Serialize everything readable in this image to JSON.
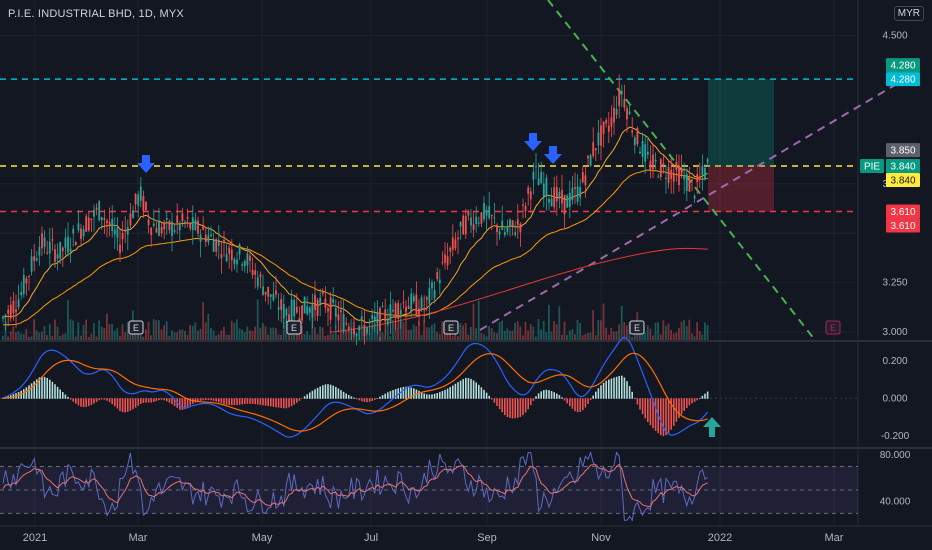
{
  "header": {
    "title": "P.I.E. INDUSTRIAL BHD, 1D, MYX",
    "currency": "MYR"
  },
  "colors": {
    "bg": "#131722",
    "grid": "#1e222d",
    "axis_text": "#b2b5be",
    "cyan": "#00bcd4",
    "yellow": "#ffeb3b",
    "red": "#f23645",
    "green_dash": "#4caf50",
    "purple_dash": "#9c6aa8",
    "ma_fast": "#f5a623",
    "ma_mid": "#ff9800",
    "ma_slow": "#e53935",
    "macd": "#2962ff",
    "signal": "#ff6d00",
    "rsi": "#7e57c2",
    "candle_up": "#26a69a",
    "candle_down": "#ef5350",
    "arrow": "#2962ff"
  },
  "chart_data": [
    {
      "type": "candlestick",
      "name": "price",
      "x_labels": [
        "2021",
        "Mar",
        "May",
        "Jul",
        "Sep",
        "Nov",
        "2022",
        "Mar"
      ],
      "y_ticks": [
        "4.500",
        "3.750",
        "3.250",
        "3.000"
      ],
      "levels": [
        {
          "value": 4.28,
          "label": "4.280",
          "color": "cyan"
        },
        {
          "value": 3.84,
          "label": "3.840",
          "color": "yellow"
        },
        {
          "value": 3.61,
          "label": "3.610",
          "color": "red"
        }
      ],
      "price_tags": [
        {
          "value": 4.28,
          "label": "4.280",
          "color": "#089981"
        },
        {
          "value": 3.85,
          "label": "3.850",
          "color": "#5d606b"
        },
        {
          "value": 3.84,
          "label": "3.840",
          "color": "#089981",
          "prefix": "PIE"
        },
        {
          "value": 3.61,
          "label": "3.610",
          "color": "#f23645"
        }
      ],
      "earnings_marker": "E",
      "ylim": [
        2.96,
        4.68
      ]
    },
    {
      "type": "line",
      "name": "macd",
      "y_ticks": [
        "0.200",
        "0.000",
        "-0.200"
      ],
      "ylim": [
        -0.26,
        0.3
      ]
    },
    {
      "type": "line",
      "name": "rsi",
      "y_ticks": [
        "80.000",
        "40.000"
      ],
      "bands": [
        70,
        50,
        30
      ],
      "ylim": [
        20,
        85
      ]
    }
  ]
}
